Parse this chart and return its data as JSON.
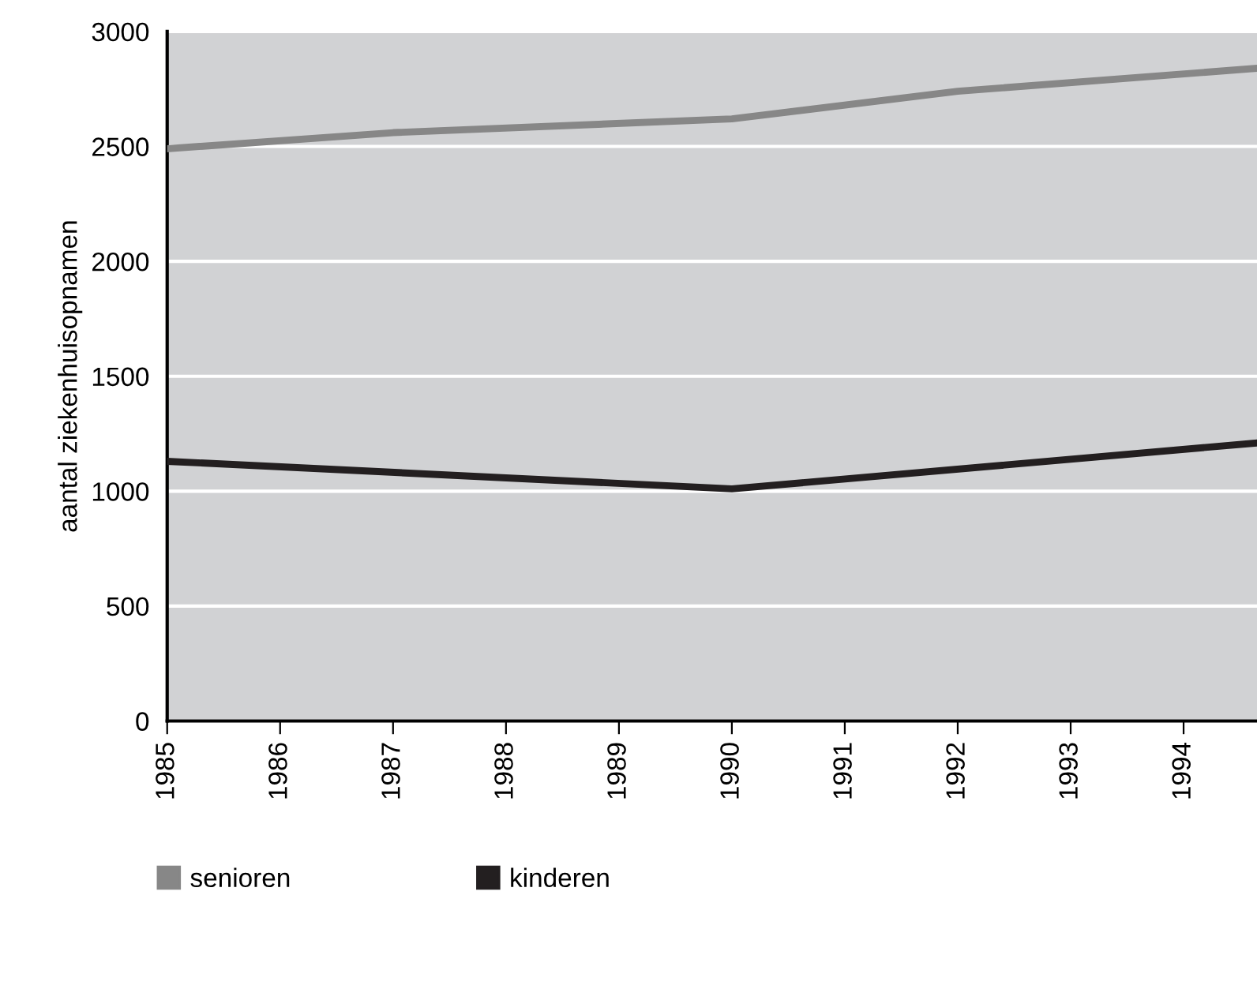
{
  "chart_data": {
    "type": "line",
    "ylabel": "aantal ziekenhuisopnamen",
    "series": [
      {
        "name": "senioren",
        "color": "#878787",
        "x": [
          1985,
          1987,
          1990,
          1992,
          1994.65
        ],
        "values": [
          2490,
          2560,
          2620,
          2740,
          2840
        ]
      },
      {
        "name": "kinderen",
        "color": "#231f20",
        "x": [
          1985,
          1990,
          1994.65
        ],
        "values": [
          1130,
          1010,
          1210
        ]
      }
    ],
    "xlim": [
      1985,
      1994.65
    ],
    "xticks": [
      1985,
      1986,
      1987,
      1988,
      1989,
      1990,
      1991,
      1992,
      1993,
      1994
    ],
    "ylim": [
      0,
      3000
    ],
    "yticks": [
      0,
      500,
      1000,
      1500,
      2000,
      2500,
      3000
    ],
    "grid": "y",
    "legend": "bottom",
    "marker": "none",
    "line_style": "solid"
  }
}
